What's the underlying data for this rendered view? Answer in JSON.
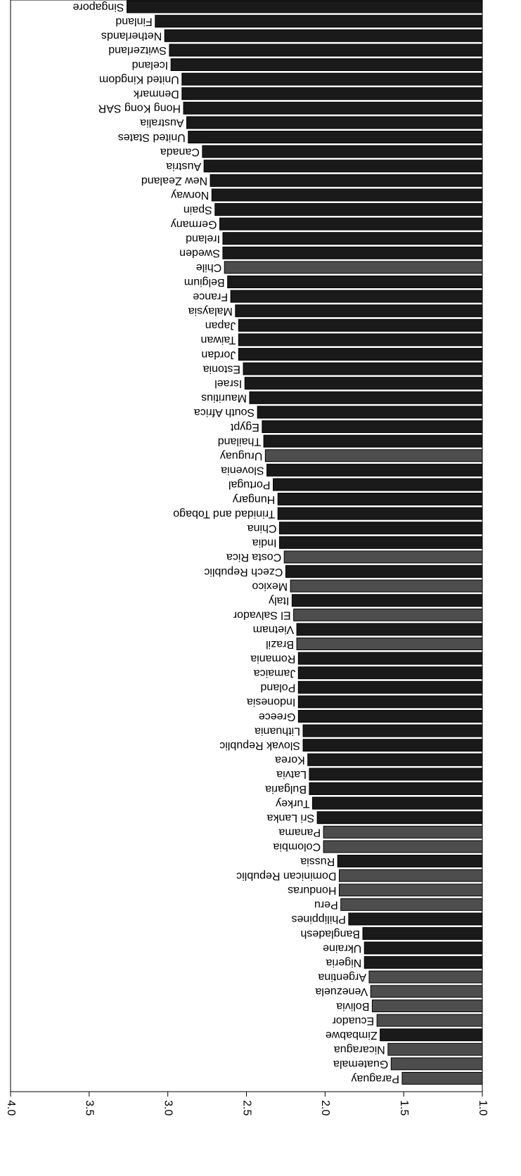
{
  "chart_data": {
    "type": "barh",
    "categories": [
      "Paraguay",
      "Guatemala",
      "Nicaragua",
      "Zimbabwe",
      "Ecuador",
      "Bolivia",
      "Venezuela",
      "Argentina",
      "Nigeria",
      "Ukraine",
      "Bangladesh",
      "Philippines",
      "Peru",
      "Honduras",
      "Dominican Republic",
      "Russia",
      "Colombia",
      "Panama",
      "Sri Lanka",
      "Turkey",
      "Bulgaria",
      "Latvia",
      "Korea",
      "Slovak Republic",
      "Lithuania",
      "Greece",
      "Indonesia",
      "Poland",
      "Jamaica",
      "Romania",
      "Brazil",
      "Vietnam",
      "El Salvador",
      "Italy",
      "Mexico",
      "Czech Republic",
      "Costa Rica",
      "India",
      "China",
      "Trinidad and Tobago",
      "Hungary",
      "Portugal",
      "Slovenia",
      "Uruguay",
      "Thailand",
      "Egypt",
      "South Africa",
      "Mauritius",
      "Israel",
      "Estonia",
      "Jordan",
      "Taiwan",
      "Japan",
      "Malaysia",
      "France",
      "Belgium",
      "Chile",
      "Sweden",
      "Ireland",
      "Germany",
      "Spain",
      "Norway",
      "New Zealand",
      "Austria",
      "Canada",
      "United States",
      "Australia",
      "Hong Kong SAR",
      "Denmark",
      "United Kingdom",
      "Iceland",
      "Switzerland",
      "Netherlands",
      "Finland",
      "Singapore"
    ],
    "values": [
      1.51,
      1.58,
      1.6,
      1.65,
      1.67,
      1.7,
      1.71,
      1.72,
      1.75,
      1.75,
      1.76,
      1.85,
      1.9,
      1.91,
      1.91,
      1.92,
      2.01,
      2.01,
      2.05,
      2.08,
      2.1,
      2.1,
      2.11,
      2.14,
      2.14,
      2.17,
      2.17,
      2.17,
      2.17,
      2.17,
      2.18,
      2.18,
      2.2,
      2.21,
      2.22,
      2.25,
      2.26,
      2.29,
      2.29,
      2.3,
      2.3,
      2.33,
      2.37,
      2.38,
      2.39,
      2.4,
      2.43,
      2.48,
      2.51,
      2.52,
      2.55,
      2.55,
      2.55,
      2.57,
      2.6,
      2.62,
      2.64,
      2.65,
      2.65,
      2.67,
      2.7,
      2.72,
      2.73,
      2.77,
      2.78,
      2.87,
      2.88,
      2.9,
      2.91,
      2.91,
      2.98,
      2.99,
      3.02,
      3.08,
      3.26
    ],
    "colors": [
      "#4d4d4d",
      "#4d4d4d",
      "#4d4d4d",
      "#1a1a1a",
      "#4d4d4d",
      "#4d4d4d",
      "#4d4d4d",
      "#4d4d4d",
      "#1a1a1a",
      "#1a1a1a",
      "#1a1a1a",
      "#1a1a1a",
      "#4d4d4d",
      "#4d4d4d",
      "#4d4d4d",
      "#1a1a1a",
      "#4d4d4d",
      "#4d4d4d",
      "#1a1a1a",
      "#1a1a1a",
      "#1a1a1a",
      "#1a1a1a",
      "#1a1a1a",
      "#1a1a1a",
      "#1a1a1a",
      "#1a1a1a",
      "#1a1a1a",
      "#1a1a1a",
      "#1a1a1a",
      "#1a1a1a",
      "#4d4d4d",
      "#1a1a1a",
      "#4d4d4d",
      "#1a1a1a",
      "#4d4d4d",
      "#1a1a1a",
      "#4d4d4d",
      "#1a1a1a",
      "#1a1a1a",
      "#1a1a1a",
      "#1a1a1a",
      "#1a1a1a",
      "#1a1a1a",
      "#4d4d4d",
      "#1a1a1a",
      "#1a1a1a",
      "#1a1a1a",
      "#1a1a1a",
      "#1a1a1a",
      "#1a1a1a",
      "#1a1a1a",
      "#1a1a1a",
      "#1a1a1a",
      "#1a1a1a",
      "#1a1a1a",
      "#1a1a1a",
      "#4d4d4d",
      "#1a1a1a",
      "#1a1a1a",
      "#1a1a1a",
      "#1a1a1a",
      "#1a1a1a",
      "#1a1a1a",
      "#1a1a1a",
      "#1a1a1a",
      "#1a1a1a",
      "#1a1a1a",
      "#1a1a1a",
      "#1a1a1a",
      "#1a1a1a",
      "#1a1a1a",
      "#1a1a1a",
      "#1a1a1a",
      "#1a1a1a",
      "#1a1a1a"
    ],
    "xlim": [
      1.0,
      4.0
    ],
    "xticks": [
      {
        "value": 1.0,
        "label": "1.0"
      },
      {
        "value": 1.5,
        "label": "1.5"
      },
      {
        "value": 2.0,
        "label": "2.0"
      },
      {
        "value": 2.5,
        "label": "2.5"
      },
      {
        "value": 3.0,
        "label": "3.0"
      },
      {
        "value": 3.5,
        "label": "3.5"
      },
      {
        "value": 4.0,
        "label": "4.0"
      }
    ]
  }
}
